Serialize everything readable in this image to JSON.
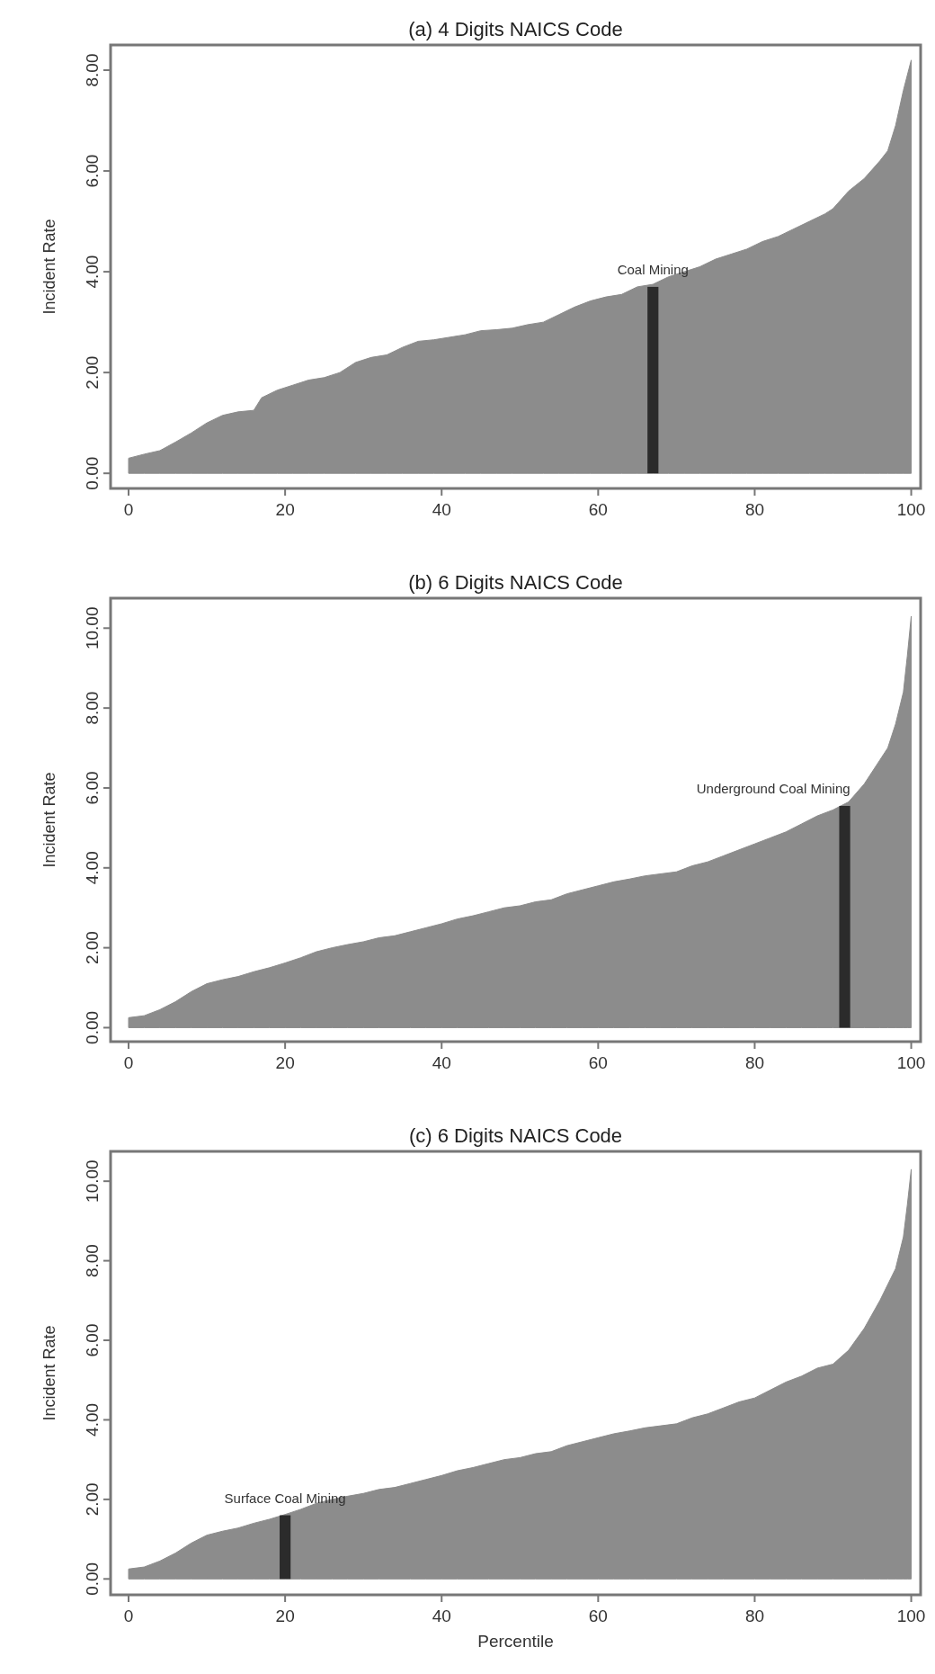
{
  "chart_data": [
    {
      "type": "area",
      "title": "(a) 4 Digits NAICS Code",
      "ylabel": "Incident Rate",
      "xlim": [
        -2.3,
        101.2
      ],
      "xticks": [
        0,
        20,
        40,
        60,
        80,
        100
      ],
      "ylim": [
        -0.3,
        8.5
      ],
      "yticks": [
        {
          "value": 0,
          "label": "0.00"
        },
        {
          "value": 2,
          "label": "2.00"
        },
        {
          "value": 4,
          "label": "4.00"
        },
        {
          "value": 6,
          "label": "6.00"
        },
        {
          "value": 8,
          "label": "8.00"
        }
      ],
      "grid": false,
      "series": [
        {
          "color": "#8c8c8c",
          "x": [
            0,
            2,
            4,
            6,
            8,
            10,
            12,
            14,
            16,
            17,
            19,
            21,
            23,
            25,
            27,
            29,
            31,
            33,
            35,
            37,
            39,
            41,
            43,
            45,
            47,
            49,
            51,
            53,
            55,
            57,
            59,
            61,
            63,
            65,
            67,
            69,
            71,
            73,
            75,
            77,
            79,
            81,
            83,
            85,
            87,
            89,
            90,
            92,
            94,
            96,
            97,
            98,
            99,
            100
          ],
          "values": [
            0.3,
            0.38,
            0.45,
            0.62,
            0.8,
            1.0,
            1.15,
            1.22,
            1.25,
            1.5,
            1.65,
            1.75,
            1.85,
            1.9,
            2.0,
            2.2,
            2.3,
            2.35,
            2.5,
            2.62,
            2.65,
            2.7,
            2.75,
            2.83,
            2.85,
            2.88,
            2.95,
            3.0,
            3.15,
            3.3,
            3.42,
            3.5,
            3.55,
            3.7,
            3.75,
            3.9,
            4.0,
            4.1,
            4.25,
            4.35,
            4.45,
            4.6,
            4.7,
            4.85,
            5.0,
            5.15,
            5.25,
            5.6,
            5.85,
            6.2,
            6.4,
            6.9,
            7.6,
            8.2
          ]
        },
        {
          "type": "bar",
          "color": "#2b2b2b",
          "x": [
            67
          ],
          "values": [
            3.7
          ]
        }
      ],
      "annotations": [
        {
          "text": "Coal Mining",
          "x": 67,
          "y": 3.7
        }
      ]
    },
    {
      "type": "area",
      "title": "(b) 6 Digits NAICS Code",
      "ylabel": "Incident Rate",
      "xlim": [
        -2.3,
        101.2
      ],
      "xticks": [
        0,
        20,
        40,
        60,
        80,
        100
      ],
      "ylim": [
        -0.35,
        10.75
      ],
      "yticks": [
        {
          "value": 0,
          "label": "0.00"
        },
        {
          "value": 2,
          "label": "2.00"
        },
        {
          "value": 4,
          "label": "4.00"
        },
        {
          "value": 6,
          "label": "6.00"
        },
        {
          "value": 8,
          "label": "8.00"
        },
        {
          "value": 10,
          "label": "10.00"
        }
      ],
      "grid": false,
      "series": [
        {
          "color": "#8c8c8c",
          "x": [
            0,
            2,
            4,
            6,
            8,
            10,
            12,
            14,
            16,
            18,
            20,
            22,
            24,
            26,
            28,
            30,
            32,
            34,
            36,
            38,
            40,
            42,
            44,
            46,
            48,
            50,
            52,
            54,
            56,
            58,
            60,
            62,
            64,
            66,
            68,
            70,
            72,
            74,
            76,
            78,
            80,
            82,
            84,
            86,
            88,
            90,
            92,
            94,
            96,
            97,
            98,
            99,
            99.5,
            100
          ],
          "values": [
            0.25,
            0.3,
            0.45,
            0.65,
            0.9,
            1.1,
            1.2,
            1.28,
            1.4,
            1.5,
            1.62,
            1.75,
            1.9,
            2.0,
            2.08,
            2.15,
            2.25,
            2.3,
            2.4,
            2.5,
            2.6,
            2.72,
            2.8,
            2.9,
            3.0,
            3.05,
            3.15,
            3.2,
            3.35,
            3.45,
            3.55,
            3.65,
            3.72,
            3.8,
            3.85,
            3.9,
            4.05,
            4.15,
            4.3,
            4.45,
            4.6,
            4.75,
            4.9,
            5.1,
            5.3,
            5.45,
            5.65,
            6.1,
            6.7,
            7.0,
            7.6,
            8.4,
            9.3,
            10.3
          ]
        },
        {
          "type": "bar",
          "color": "#2b2b2b",
          "x": [
            91.5
          ],
          "values": [
            5.55
          ]
        }
      ],
      "annotations": [
        {
          "text": "Underground Coal Mining",
          "x": 91.5,
          "y": 5.55
        }
      ]
    },
    {
      "type": "area",
      "title": "(c) 6 Digits NAICS Code",
      "xlabel": "Percentile",
      "ylabel": "Incident Rate",
      "xlim": [
        -2.3,
        101.2
      ],
      "xticks": [
        0,
        20,
        40,
        60,
        80,
        100
      ],
      "ylim": [
        -0.4,
        10.75
      ],
      "yticks": [
        {
          "value": 0,
          "label": "0.00"
        },
        {
          "value": 2,
          "label": "2.00"
        },
        {
          "value": 4,
          "label": "4.00"
        },
        {
          "value": 6,
          "label": "6.00"
        },
        {
          "value": 8,
          "label": "8.00"
        },
        {
          "value": 10,
          "label": "10.00"
        }
      ],
      "grid": false,
      "series": [
        {
          "color": "#8c8c8c",
          "x": [
            0,
            2,
            4,
            6,
            8,
            10,
            12,
            14,
            16,
            18,
            20,
            22,
            24,
            26,
            28,
            30,
            32,
            34,
            36,
            38,
            40,
            42,
            44,
            46,
            48,
            50,
            52,
            54,
            56,
            58,
            60,
            62,
            64,
            66,
            68,
            70,
            72,
            74,
            76,
            78,
            80,
            82,
            84,
            86,
            88,
            90,
            92,
            94,
            96,
            97,
            98,
            99,
            99.5,
            100
          ],
          "values": [
            0.25,
            0.3,
            0.45,
            0.65,
            0.9,
            1.1,
            1.2,
            1.28,
            1.4,
            1.5,
            1.62,
            1.75,
            1.9,
            2.0,
            2.08,
            2.15,
            2.25,
            2.3,
            2.4,
            2.5,
            2.6,
            2.72,
            2.8,
            2.9,
            3.0,
            3.05,
            3.15,
            3.2,
            3.35,
            3.45,
            3.55,
            3.65,
            3.72,
            3.8,
            3.85,
            3.9,
            4.05,
            4.15,
            4.3,
            4.45,
            4.55,
            4.75,
            4.95,
            5.1,
            5.3,
            5.4,
            5.75,
            6.3,
            7.0,
            7.4,
            7.8,
            8.6,
            9.4,
            10.3
          ]
        },
        {
          "type": "bar",
          "color": "#2b2b2b",
          "x": [
            20
          ],
          "values": [
            1.6
          ]
        }
      ],
      "annotations": [
        {
          "text": "Surface Coal Mining",
          "x": 20,
          "y": 1.6
        }
      ]
    }
  ]
}
